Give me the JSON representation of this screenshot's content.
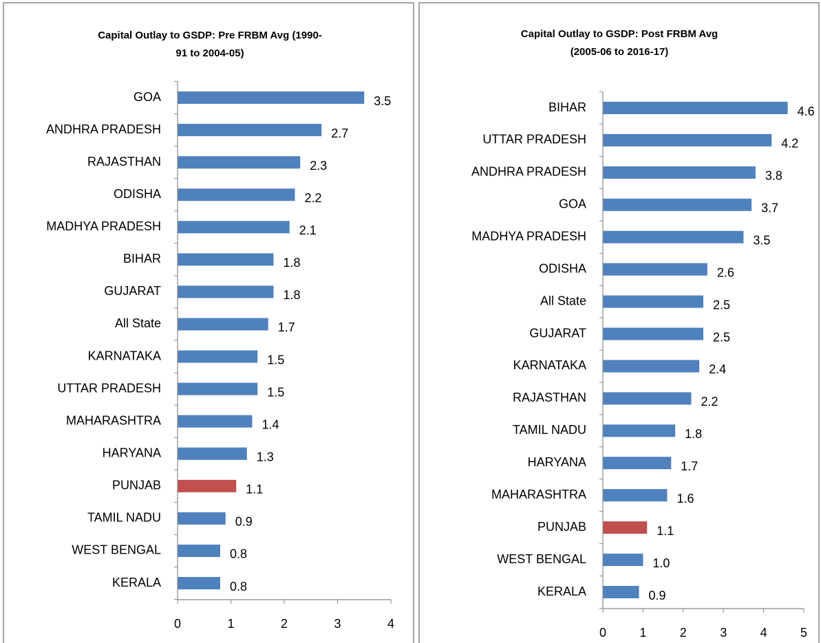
{
  "chart_data": [
    {
      "type": "bar",
      "orientation": "horizontal",
      "title": [
        "Capital Outlay to GSDP: Pre FRBM Avg (1990-",
        "91 to 2004-05)"
      ],
      "categories": [
        "GOA",
        "ANDHRA PRADESH",
        "RAJASTHAN",
        "ODISHA",
        "MADHYA PRADESH",
        "BIHAR",
        "GUJARAT",
        "All State",
        "KARNATAKA",
        "UTTAR PRADESH",
        "MAHARASHTRA",
        "HARYANA",
        "PUNJAB",
        "TAMIL NADU",
        "WEST BENGAL",
        "KERALA"
      ],
      "values": [
        3.5,
        2.7,
        2.3,
        2.2,
        2.1,
        1.8,
        1.8,
        1.7,
        1.5,
        1.5,
        1.4,
        1.3,
        1.1,
        0.9,
        0.8,
        0.8
      ],
      "colors": [
        "#4f81bd",
        "#4f81bd",
        "#4f81bd",
        "#4f81bd",
        "#4f81bd",
        "#4f81bd",
        "#4f81bd",
        "#4f81bd",
        "#4f81bd",
        "#4f81bd",
        "#4f81bd",
        "#4f81bd",
        "#c0504d",
        "#4f81bd",
        "#4f81bd",
        "#4f81bd"
      ],
      "xlim": [
        0,
        4
      ],
      "xticks": [
        0,
        1,
        2,
        3,
        4
      ]
    },
    {
      "type": "bar",
      "orientation": "horizontal",
      "title": [
        "Capital Outlay to GSDP: Post FRBM Avg",
        "(2005-06 to 2016-17)"
      ],
      "categories": [
        "BIHAR",
        "UTTAR PRADESH",
        "ANDHRA PRADESH",
        "GOA",
        "MADHYA PRADESH",
        "ODISHA",
        "All State",
        "GUJARAT",
        "KARNATAKA",
        "RAJASTHAN",
        "TAMIL NADU",
        "HARYANA",
        "MAHARASHTRA",
        "PUNJAB",
        "WEST BENGAL",
        "KERALA"
      ],
      "values": [
        4.6,
        4.2,
        3.8,
        3.7,
        3.5,
        2.6,
        2.5,
        2.5,
        2.4,
        2.2,
        1.8,
        1.7,
        1.6,
        1.1,
        1.0,
        0.9
      ],
      "value_labels": [
        "4.6",
        "4.2",
        "3.8",
        "3.7",
        "3.5",
        "2.6",
        "2.5",
        "2.5",
        "2.4",
        "2.2",
        "1.8",
        "1.7",
        "1.6",
        "1.1",
        "1.0",
        "0.9"
      ],
      "colors": [
        "#4f81bd",
        "#4f81bd",
        "#4f81bd",
        "#4f81bd",
        "#4f81bd",
        "#4f81bd",
        "#4f81bd",
        "#4f81bd",
        "#4f81bd",
        "#4f81bd",
        "#4f81bd",
        "#4f81bd",
        "#4f81bd",
        "#c0504d",
        "#4f81bd",
        "#4f81bd"
      ],
      "xlim": [
        0,
        5
      ],
      "xticks": [
        0,
        1,
        2,
        3,
        4,
        5
      ]
    }
  ]
}
